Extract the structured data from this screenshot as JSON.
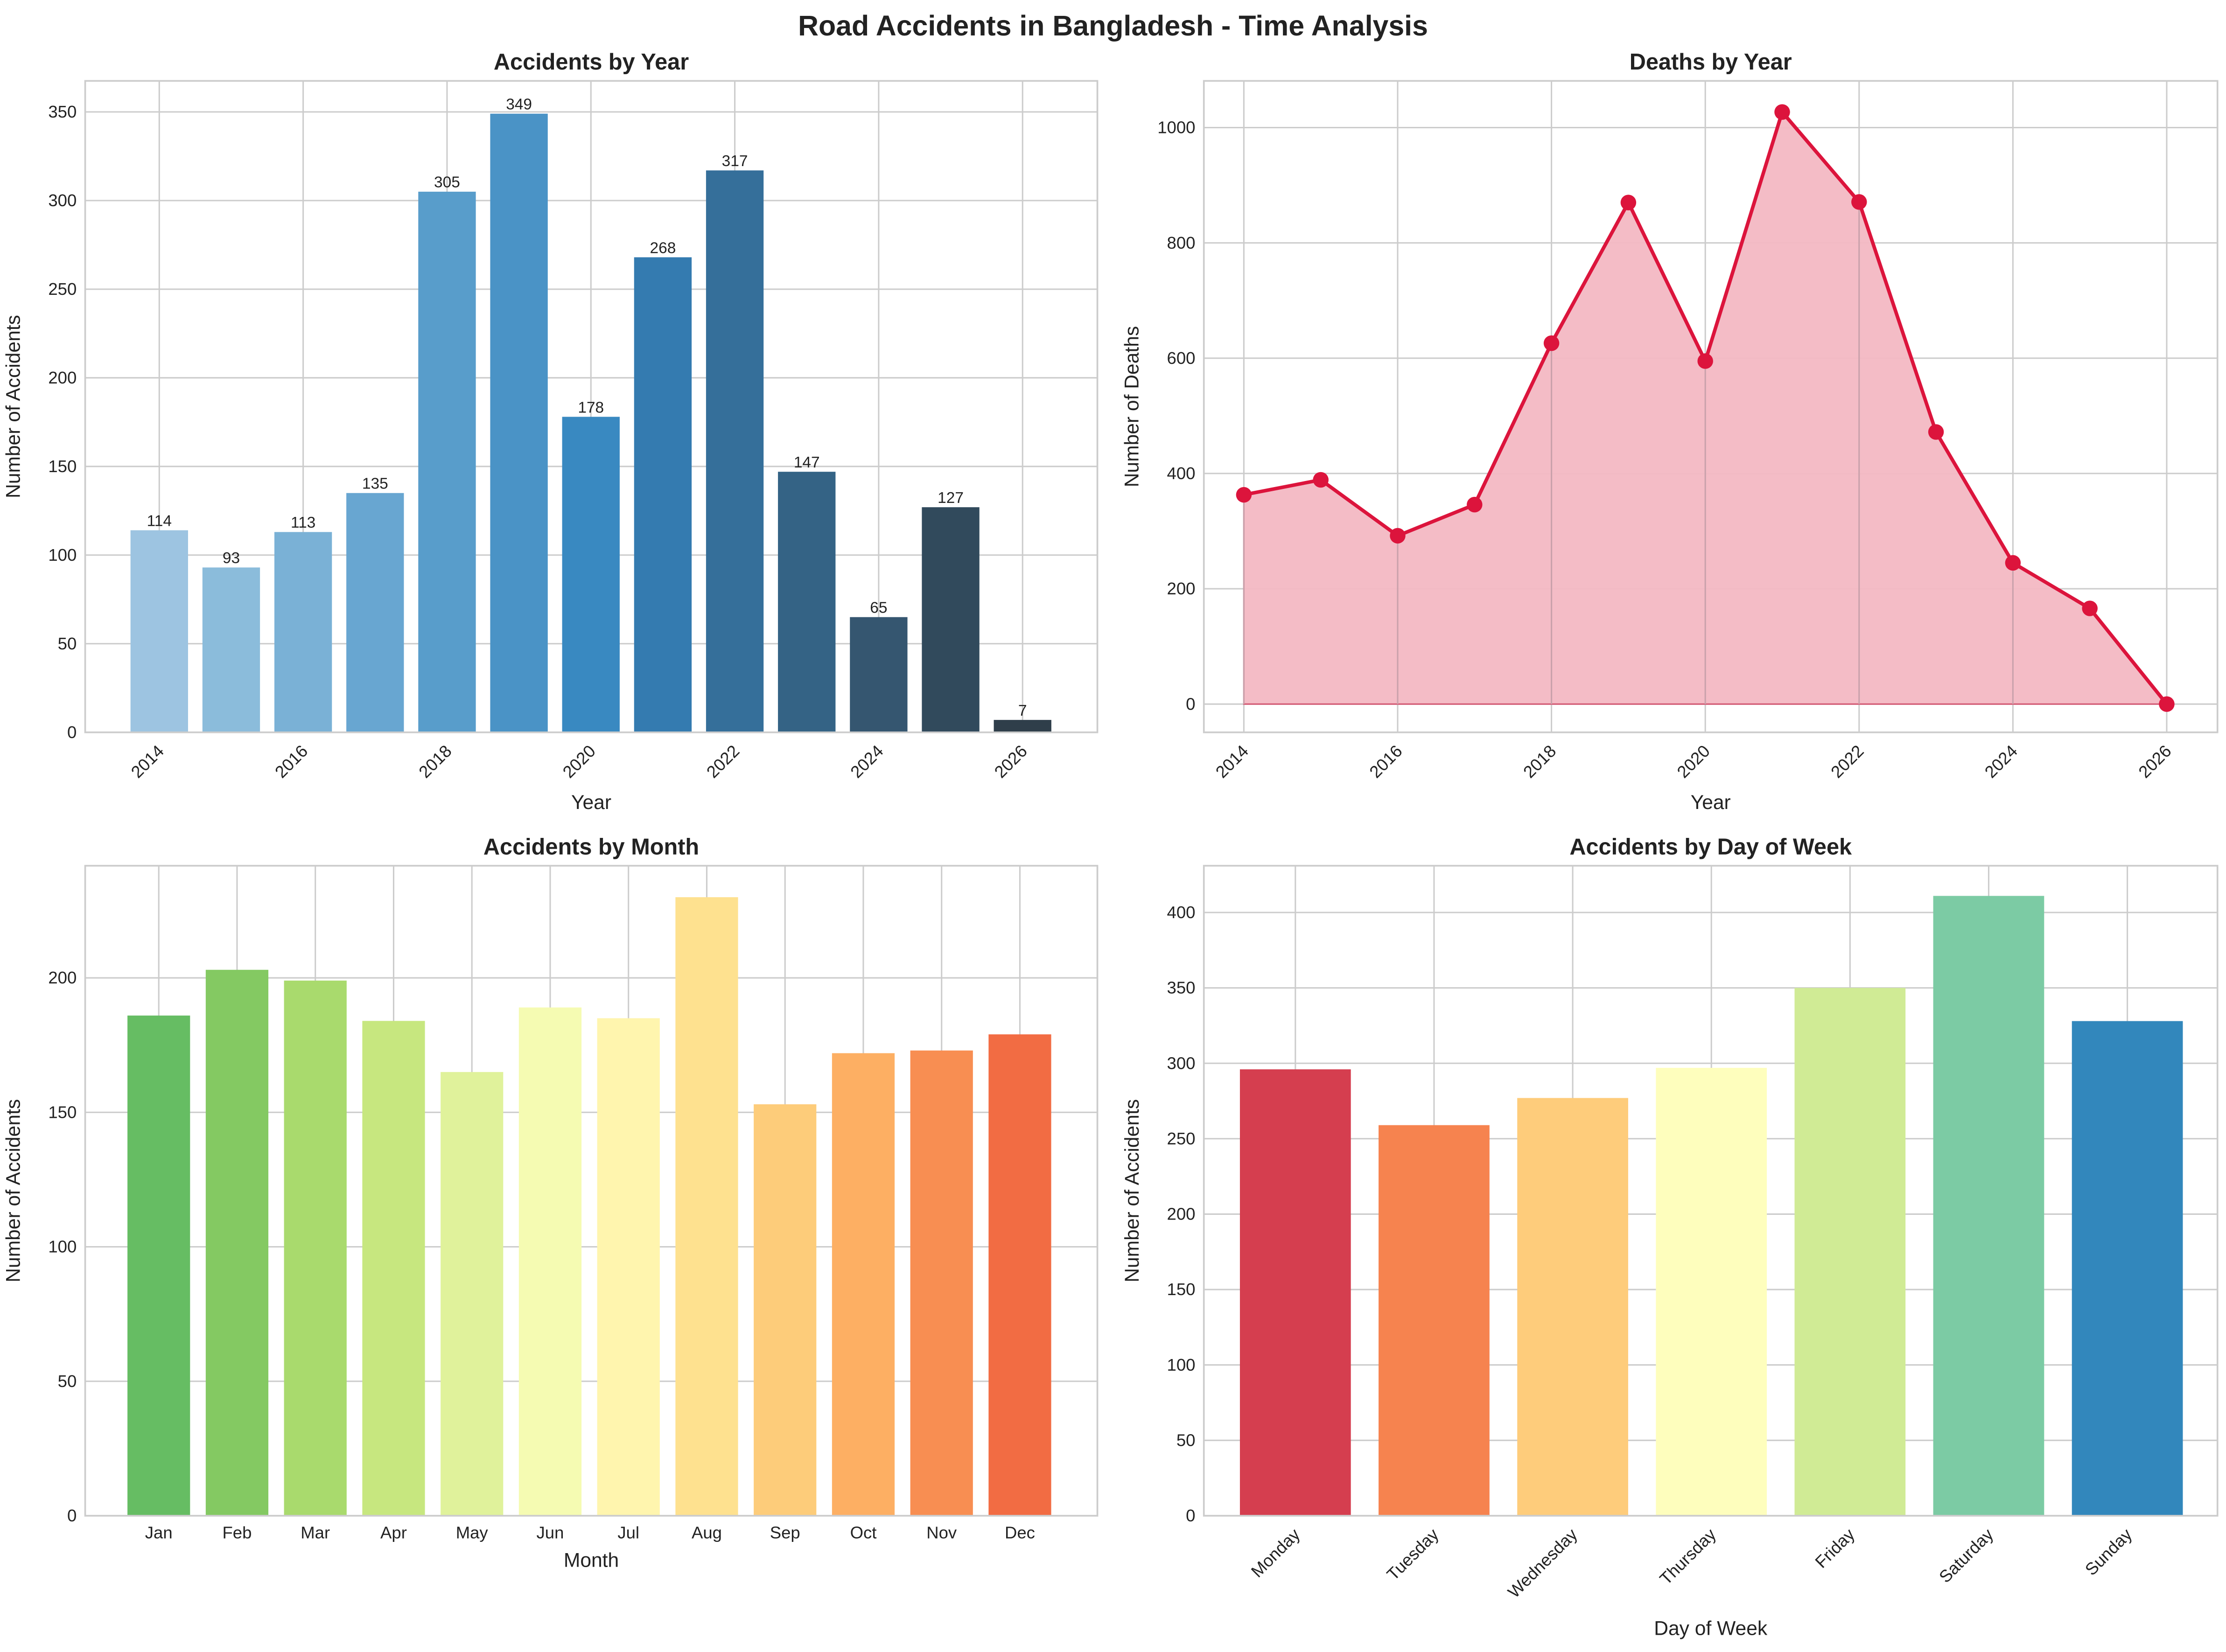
{
  "title": "Road Accidents in Bangladesh - Time Analysis",
  "chart_data": [
    {
      "id": "year",
      "type": "bar",
      "title": "Accidents by Year",
      "xlabel": "Year",
      "ylabel": "Number of Accidents",
      "x": [
        2014,
        2015,
        2016,
        2017,
        2018,
        2019,
        2020,
        2021,
        2022,
        2023,
        2024,
        2025,
        2026
      ],
      "values": [
        114,
        93,
        113,
        135,
        305,
        349,
        178,
        268,
        317,
        147,
        65,
        127,
        7
      ],
      "data_labels": true,
      "xticks": [
        2014,
        2016,
        2018,
        2020,
        2022,
        2024,
        2026
      ],
      "yticks": [
        0,
        50,
        100,
        150,
        200,
        250,
        300,
        350
      ],
      "xlim": [
        2012.97,
        2027.04
      ],
      "ylim": [
        0,
        367.5
      ],
      "xtick_rotation": 45,
      "grid": true,
      "colors": [
        "#9dc4e1",
        "#8bbcdb",
        "#7ab1d6",
        "#68a6d1",
        "#589dcb",
        "#4a93c6",
        "#3989c1",
        "#347bb0",
        "#356f9a",
        "#346385",
        "#355670",
        "#314a5c",
        "#2f3e4a"
      ]
    },
    {
      "id": "deaths",
      "type": "area",
      "title": "Deaths by Year",
      "xlabel": "Year",
      "ylabel": "Number of Deaths",
      "x": [
        2014,
        2015,
        2016,
        2017,
        2018,
        2019,
        2020,
        2021,
        2022,
        2023,
        2024,
        2025,
        2026
      ],
      "values": [
        363,
        389,
        292,
        346,
        626,
        870,
        595,
        1027,
        871,
        472,
        245,
        166,
        0
      ],
      "xticks": [
        2014,
        2016,
        2018,
        2020,
        2022,
        2024,
        2026
      ],
      "yticks": [
        0,
        200,
        400,
        600,
        800,
        1000
      ],
      "xlim": [
        2013.48,
        2026.66
      ],
      "ylim": [
        -49,
        1081
      ],
      "xtick_rotation": 45,
      "grid": true,
      "line_color": "#dc143c",
      "fill_color": "#f3b8c3"
    },
    {
      "id": "month",
      "type": "bar",
      "title": "Accidents by Month",
      "xlabel": "Month",
      "ylabel": "Number of Accidents",
      "categories": [
        "Jan",
        "Feb",
        "Mar",
        "Apr",
        "May",
        "Jun",
        "Jul",
        "Aug",
        "Sep",
        "Oct",
        "Nov",
        "Dec"
      ],
      "values": [
        186,
        203,
        199,
        184,
        165,
        189,
        185,
        230,
        153,
        172,
        173,
        179
      ],
      "yticks": [
        0,
        50,
        100,
        150,
        200
      ],
      "xlim": [
        -0.94,
        11.99
      ],
      "ylim": [
        0,
        241.7
      ],
      "xtick_rotation": 0,
      "grid": true,
      "colors": [
        "#66bd63",
        "#84c962",
        "#a9da6d",
        "#c7e77f",
        "#e0f29b",
        "#f5fbb2",
        "#fff5ae",
        "#fee18f",
        "#fdcc7a",
        "#fdaf63",
        "#f88e52",
        "#f26c43"
      ]
    },
    {
      "id": "dow",
      "type": "bar",
      "title": "Accidents by Day of Week",
      "xlabel": "Day of Week",
      "ylabel": "Number of Accidents",
      "categories": [
        "Monday",
        "Tuesday",
        "Wednesday",
        "Thursday",
        "Friday",
        "Saturday",
        "Sunday"
      ],
      "values": [
        296,
        259,
        277,
        297,
        350,
        411,
        328
      ],
      "yticks": [
        0,
        50,
        100,
        150,
        200,
        250,
        300,
        350,
        400
      ],
      "xlim": [
        -0.66,
        6.65
      ],
      "ylim": [
        0,
        431
      ],
      "xtick_rotation": 45,
      "grid": true,
      "colors": [
        "#d53e4f",
        "#f6834f",
        "#fecc7b",
        "#fefebd",
        "#d0eb95",
        "#7ccba4",
        "#3287bc"
      ]
    }
  ]
}
